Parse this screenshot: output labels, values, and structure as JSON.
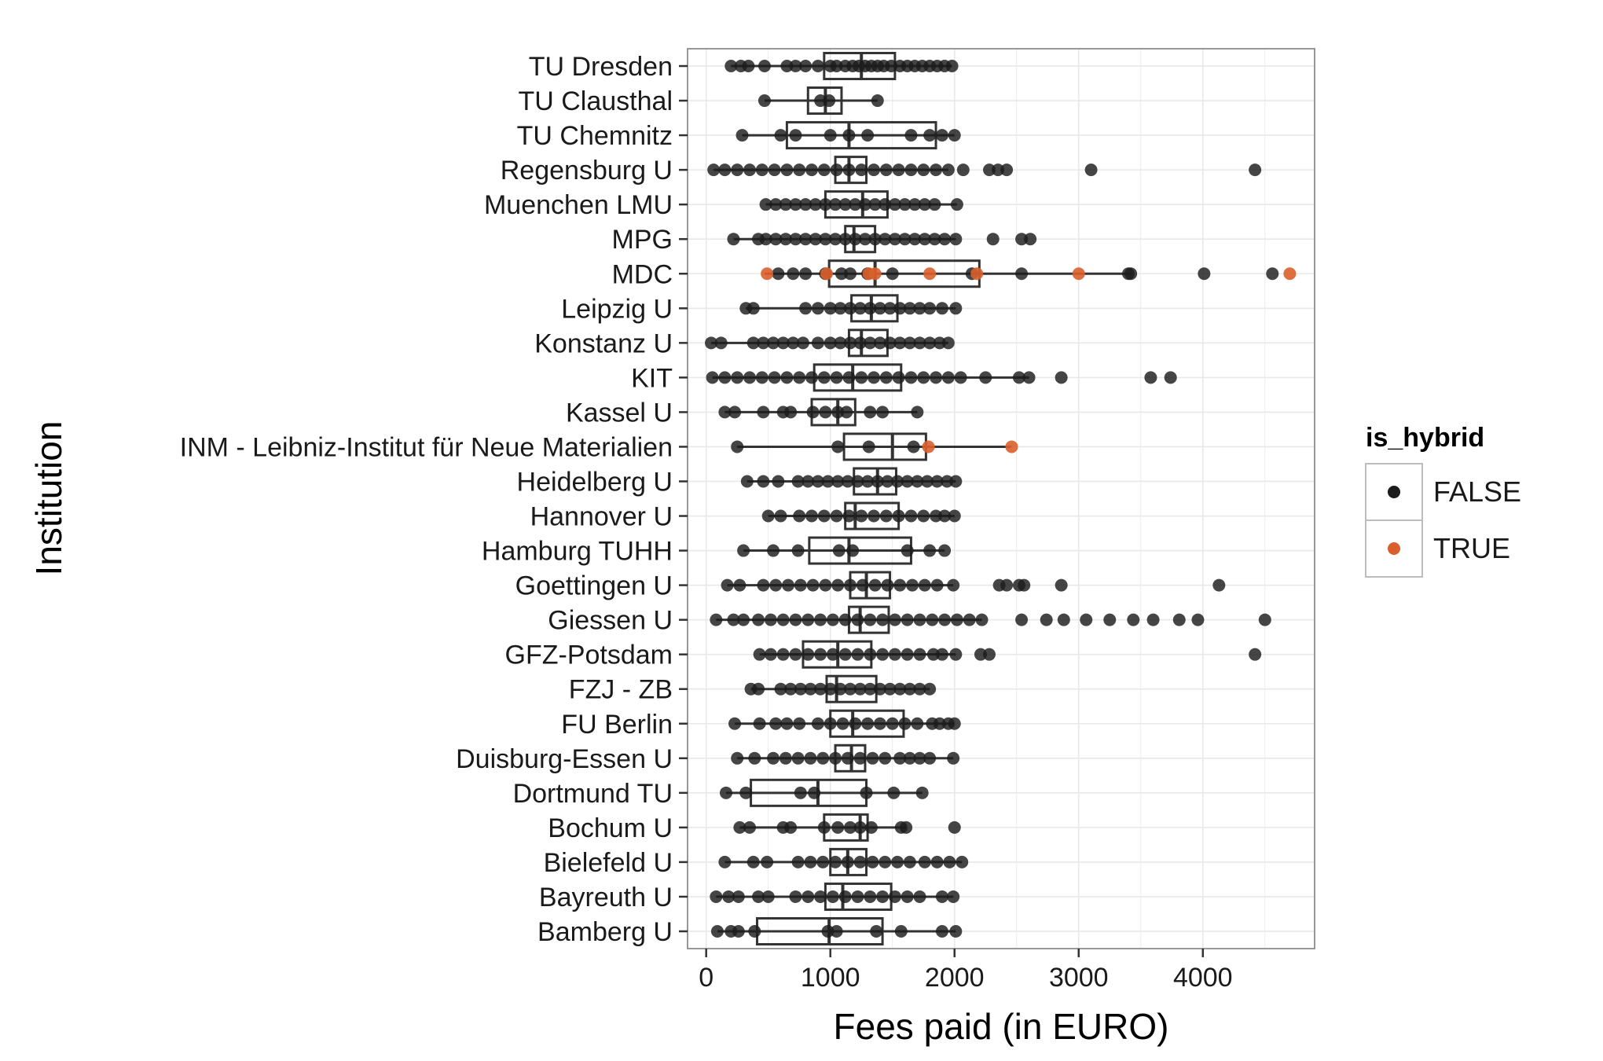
{
  "chart_data": {
    "type": "boxplot",
    "orientation": "horizontal",
    "title": "",
    "xlabel": "Fees paid (in EURO)",
    "ylabel": "Institution",
    "xlim": [
      -150,
      4900
    ],
    "xticks": [
      0,
      1000,
      2000,
      3000,
      4000
    ],
    "xtick_labels": [
      "0",
      "1000",
      "2000",
      "3000",
      "4000"
    ],
    "grid": true,
    "legend": {
      "title": "is_hybrid",
      "placement": "right",
      "entries": [
        {
          "label": "FALSE",
          "color": "#1c1c1c"
        },
        {
          "label": "TRUE",
          "color": "#d95f2b"
        }
      ]
    },
    "categories": [
      "TU Dresden",
      "TU Clausthal",
      "TU Chemnitz",
      "Regensburg U",
      "Muenchen LMU",
      "MPG",
      "MDC",
      "Leipzig U",
      "Konstanz U",
      "KIT",
      "Kassel U",
      "INM - Leibniz-Institut für Neue Materialien",
      "Heidelberg U",
      "Hannover U",
      "Hamburg TUHH",
      "Goettingen U",
      "Giessen U",
      "GFZ-Potsdam",
      "FZJ - ZB",
      "FU Berlin",
      "Duisburg-Essen U",
      "Dortmund TU",
      "Bochum U",
      "Bielefeld U",
      "Bayreuth U",
      "Bamberg U"
    ],
    "boxes": [
      {
        "category": "TU Dresden",
        "whisker_low": 200,
        "q1": 950,
        "median": 1250,
        "q3": 1520,
        "whisker_high": 1980
      },
      {
        "category": "TU Clausthal",
        "whisker_low": 470,
        "q1": 820,
        "median": 960,
        "q3": 1090,
        "whisker_high": 1380
      },
      {
        "category": "TU Chemnitz",
        "whisker_low": 290,
        "q1": 650,
        "median": 1150,
        "q3": 1850,
        "whisker_high": 2000
      },
      {
        "category": "Regensburg U",
        "whisker_low": 60,
        "q1": 1040,
        "median": 1150,
        "q3": 1290,
        "whisker_high": 1950
      },
      {
        "category": "Muenchen LMU",
        "whisker_low": 480,
        "q1": 960,
        "median": 1260,
        "q3": 1460,
        "whisker_high": 2020
      },
      {
        "category": "MPG",
        "whisker_low": 220,
        "q1": 1120,
        "median": 1190,
        "q3": 1360,
        "whisker_high": 2010
      },
      {
        "category": "MDC",
        "whisker_low": 470,
        "q1": 990,
        "median": 1360,
        "q3": 2200,
        "whisker_high": 3420
      },
      {
        "category": "Leipzig U",
        "whisker_low": 320,
        "q1": 1170,
        "median": 1330,
        "q3": 1540,
        "whisker_high": 2010
      },
      {
        "category": "Konstanz U",
        "whisker_low": 40,
        "q1": 1150,
        "median": 1250,
        "q3": 1460,
        "whisker_high": 1950
      },
      {
        "category": "KIT",
        "whisker_low": 50,
        "q1": 870,
        "median": 1180,
        "q3": 1570,
        "whisker_high": 2600
      },
      {
        "category": "Kassel U",
        "whisker_low": 150,
        "q1": 850,
        "median": 1060,
        "q3": 1200,
        "whisker_high": 1700
      },
      {
        "category": "INM - Leibniz-Institut für Neue Materialien",
        "whisker_low": 250,
        "q1": 1110,
        "median": 1500,
        "q3": 1770,
        "whisker_high": 2460
      },
      {
        "category": "Heidelberg U",
        "whisker_low": 330,
        "q1": 1190,
        "median": 1380,
        "q3": 1530,
        "whisker_high": 2010
      },
      {
        "category": "Hannover U",
        "whisker_low": 500,
        "q1": 1120,
        "median": 1200,
        "q3": 1550,
        "whisker_high": 2000
      },
      {
        "category": "Hamburg TUHH",
        "whisker_low": 300,
        "q1": 830,
        "median": 1150,
        "q3": 1650,
        "whisker_high": 1920
      },
      {
        "category": "Goettingen U",
        "whisker_low": 170,
        "q1": 1160,
        "median": 1290,
        "q3": 1480,
        "whisker_high": 1990
      },
      {
        "category": "Giessen U",
        "whisker_low": 80,
        "q1": 1150,
        "median": 1240,
        "q3": 1470,
        "whisker_high": 2220
      },
      {
        "category": "GFZ-Potsdam",
        "whisker_low": 430,
        "q1": 780,
        "median": 1060,
        "q3": 1330,
        "whisker_high": 2010
      },
      {
        "category": "FZJ - ZB",
        "whisker_low": 360,
        "q1": 970,
        "median": 1050,
        "q3": 1370,
        "whisker_high": 1800
      },
      {
        "category": "FU Berlin",
        "whisker_low": 230,
        "q1": 1000,
        "median": 1180,
        "q3": 1590,
        "whisker_high": 2000
      },
      {
        "category": "Duisburg-Essen U",
        "whisker_low": 250,
        "q1": 1040,
        "median": 1170,
        "q3": 1280,
        "whisker_high": 1990
      },
      {
        "category": "Dortmund TU",
        "whisker_low": 160,
        "q1": 360,
        "median": 900,
        "q3": 1290,
        "whisker_high": 1740
      },
      {
        "category": "Bochum U",
        "whisker_low": 270,
        "q1": 950,
        "median": 1240,
        "q3": 1300,
        "whisker_high": 1610
      },
      {
        "category": "Bielefeld U",
        "whisker_low": 150,
        "q1": 1000,
        "median": 1140,
        "q3": 1290,
        "whisker_high": 2060
      },
      {
        "category": "Bayreuth U",
        "whisker_low": 80,
        "q1": 960,
        "median": 1100,
        "q3": 1490,
        "whisker_high": 1990
      },
      {
        "category": "Bamberg U",
        "whisker_low": 90,
        "q1": 410,
        "median": 990,
        "q3": 1420,
        "whisker_high": 2010
      }
    ],
    "points": [
      {
        "category": "TU Dresden",
        "hybrid": false,
        "values": [
          200,
          280,
          340,
          470,
          650,
          720,
          800,
          900,
          1000,
          1050,
          1120,
          1180,
          1230,
          1280,
          1330,
          1380,
          1430,
          1490,
          1560,
          1620,
          1680,
          1740,
          1800,
          1860,
          1920,
          1980
        ]
      },
      {
        "category": "TU Clausthal",
        "hybrid": false,
        "values": [
          470,
          920,
          990,
          1380
        ]
      },
      {
        "category": "TU Chemnitz",
        "hybrid": false,
        "values": [
          290,
          600,
          720,
          1000,
          1150,
          1300,
          1650,
          1800,
          1900,
          2000
        ]
      },
      {
        "category": "Regensburg U",
        "hybrid": false,
        "values": [
          60,
          150,
          250,
          350,
          450,
          550,
          650,
          750,
          850,
          950,
          1050,
          1150,
          1250,
          1350,
          1450,
          1550,
          1650,
          1750,
          1850,
          1950,
          2070,
          2280,
          2350,
          2420,
          3100,
          4420
        ]
      },
      {
        "category": "Muenchen LMU",
        "hybrid": false,
        "values": [
          480,
          560,
          640,
          720,
          800,
          880,
          960,
          1040,
          1120,
          1200,
          1280,
          1360,
          1440,
          1520,
          1600,
          1680,
          1760,
          1840,
          2020
        ]
      },
      {
        "category": "MPG",
        "hybrid": false,
        "values": [
          220,
          420,
          480,
          560,
          640,
          720,
          800,
          880,
          960,
          1040,
          1120,
          1200,
          1280,
          1360,
          1440,
          1520,
          1600,
          1680,
          1760,
          1840,
          1920,
          2010,
          2310,
          2540,
          2610
        ]
      },
      {
        "category": "MDC",
        "hybrid": false,
        "values": [
          580,
          700,
          800,
          960,
          1090,
          1160,
          1300,
          1500,
          2140,
          2540,
          3400,
          3420,
          4010,
          4560
        ]
      },
      {
        "category": "MDC",
        "hybrid": true,
        "values": [
          490,
          970,
          1310,
          1360,
          1800,
          2180,
          3000,
          4700
        ]
      },
      {
        "category": "Leipzig U",
        "hybrid": false,
        "values": [
          320,
          380,
          800,
          900,
          1000,
          1080,
          1160,
          1240,
          1320,
          1400,
          1480,
          1560,
          1640,
          1720,
          1800,
          1900,
          2010
        ]
      },
      {
        "category": "Konstanz U",
        "hybrid": false,
        "values": [
          40,
          120,
          380,
          460,
          540,
          620,
          700,
          780,
          900,
          1000,
          1080,
          1160,
          1240,
          1320,
          1400,
          1480,
          1560,
          1640,
          1720,
          1800,
          1880,
          1950
        ]
      },
      {
        "category": "KIT",
        "hybrid": false,
        "values": [
          50,
          150,
          250,
          350,
          450,
          550,
          650,
          750,
          850,
          950,
          1050,
          1150,
          1250,
          1350,
          1450,
          1550,
          1650,
          1750,
          1850,
          1950,
          2050,
          2250,
          2520,
          2600,
          2860,
          3580,
          3740
        ]
      },
      {
        "category": "Kassel U",
        "hybrid": false,
        "values": [
          150,
          230,
          460,
          620,
          680,
          860,
          960,
          1060,
          1130,
          1320,
          1420,
          1700
        ]
      },
      {
        "category": "INM - Leibniz-Institut für Neue Materialien",
        "hybrid": false,
        "values": [
          250,
          1060,
          1310,
          1670
        ]
      },
      {
        "category": "INM - Leibniz-Institut für Neue Materialien",
        "hybrid": true,
        "values": [
          1790,
          2460
        ]
      },
      {
        "category": "Heidelberg U",
        "hybrid": false,
        "values": [
          330,
          460,
          580,
          740,
          820,
          900,
          980,
          1060,
          1140,
          1220,
          1300,
          1380,
          1460,
          1540,
          1620,
          1700,
          1780,
          1860,
          1940,
          2010
        ]
      },
      {
        "category": "Hannover U",
        "hybrid": false,
        "values": [
          500,
          600,
          750,
          850,
          950,
          1050,
          1150,
          1250,
          1350,
          1450,
          1550,
          1650,
          1750,
          1850,
          1920,
          2000
        ]
      },
      {
        "category": "Hamburg TUHH",
        "hybrid": false,
        "values": [
          300,
          540,
          740,
          1070,
          1180,
          1620,
          1800,
          1920
        ]
      },
      {
        "category": "Goettingen U",
        "hybrid": false,
        "values": [
          170,
          270,
          460,
          560,
          660,
          760,
          860,
          960,
          1060,
          1160,
          1260,
          1360,
          1460,
          1560,
          1660,
          1760,
          1860,
          1990,
          2360,
          2420,
          2520,
          2560,
          2860,
          4130
        ]
      },
      {
        "category": "Giessen U",
        "hybrid": false,
        "values": [
          80,
          220,
          300,
          420,
          520,
          620,
          720,
          820,
          920,
          1020,
          1120,
          1220,
          1320,
          1420,
          1520,
          1620,
          1720,
          1820,
          1920,
          2020,
          2120,
          2220,
          2540,
          2740,
          2880,
          3060,
          3250,
          3440,
          3600,
          3810,
          3960,
          4500
        ]
      },
      {
        "category": "GFZ-Potsdam",
        "hybrid": false,
        "values": [
          430,
          520,
          620,
          720,
          820,
          920,
          1020,
          1120,
          1220,
          1320,
          1420,
          1520,
          1620,
          1720,
          1830,
          1900,
          2010,
          2210,
          2280,
          4420
        ]
      },
      {
        "category": "FZJ - ZB",
        "hybrid": false,
        "values": [
          360,
          420,
          600,
          680,
          760,
          840,
          920,
          1000,
          1080,
          1160,
          1240,
          1320,
          1400,
          1480,
          1560,
          1640,
          1720,
          1800
        ]
      },
      {
        "category": "FU Berlin",
        "hybrid": false,
        "values": [
          230,
          430,
          560,
          650,
          750,
          900,
          1000,
          1100,
          1200,
          1300,
          1400,
          1500,
          1600,
          1700,
          1820,
          1880,
          1950,
          2000
        ]
      },
      {
        "category": "Duisburg-Essen U",
        "hybrid": false,
        "values": [
          250,
          390,
          540,
          640,
          740,
          840,
          940,
          1040,
          1140,
          1240,
          1340,
          1440,
          1560,
          1640,
          1720,
          1800,
          1990
        ]
      },
      {
        "category": "Dortmund TU",
        "hybrid": false,
        "values": [
          160,
          320,
          760,
          870,
          1290,
          1510,
          1740
        ]
      },
      {
        "category": "Bochum U",
        "hybrid": false,
        "values": [
          270,
          350,
          620,
          680,
          950,
          1060,
          1160,
          1240,
          1330,
          1570,
          1610,
          2000
        ]
      },
      {
        "category": "Bielefeld U",
        "hybrid": false,
        "values": [
          150,
          380,
          490,
          740,
          840,
          940,
          1040,
          1140,
          1240,
          1340,
          1440,
          1540,
          1640,
          1760,
          1860,
          1960,
          2060
        ]
      },
      {
        "category": "Bayreuth U",
        "hybrid": false,
        "values": [
          80,
          180,
          260,
          420,
          500,
          720,
          820,
          920,
          1020,
          1120,
          1220,
          1320,
          1420,
          1520,
          1620,
          1720,
          1900,
          1990
        ]
      },
      {
        "category": "Bamberg U",
        "hybrid": false,
        "values": [
          90,
          200,
          260,
          390,
          980,
          1050,
          1370,
          1570,
          1900,
          2010
        ]
      }
    ]
  }
}
